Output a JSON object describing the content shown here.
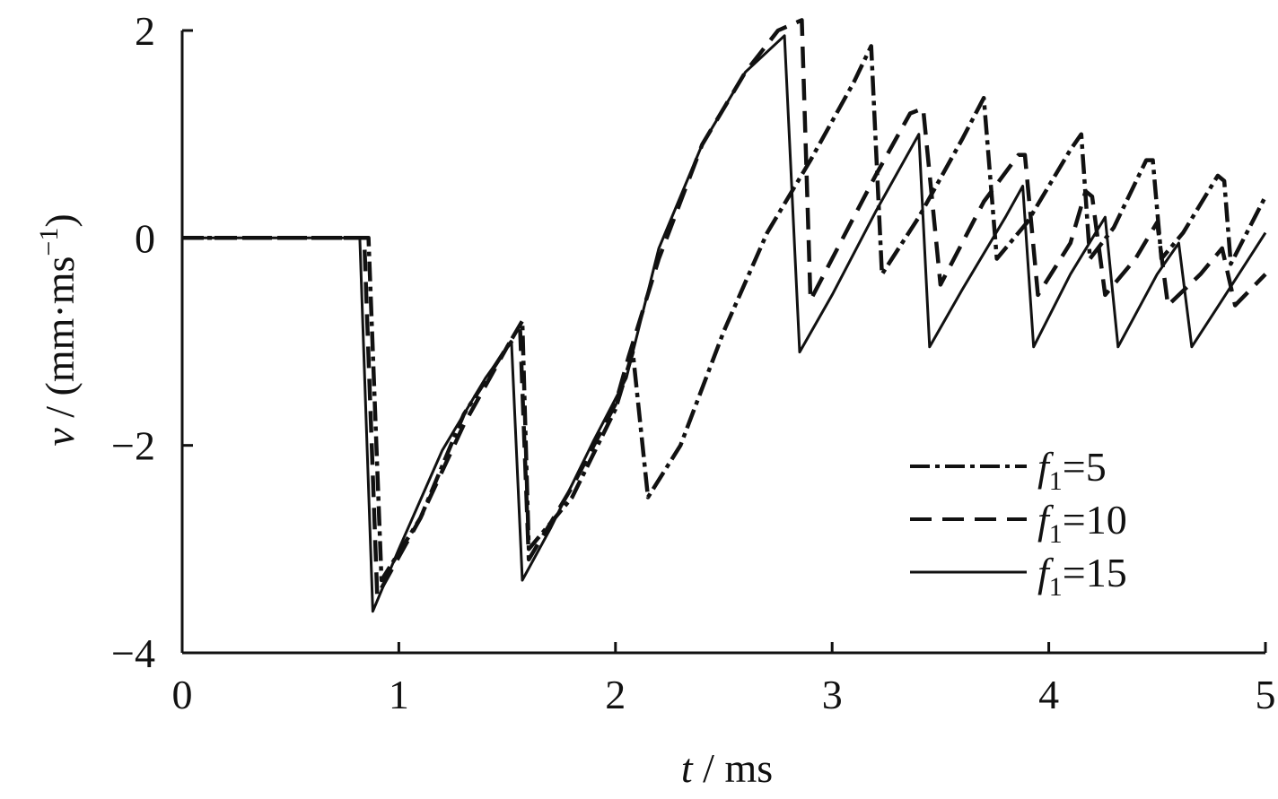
{
  "chart_data": {
    "type": "line",
    "title": "",
    "xlabel": {
      "var": "t",
      "unit": "ms"
    },
    "ylabel": {
      "var": "v",
      "unit_prefix": "(mm·ms",
      "unit_exp": "−1",
      "unit_suffix": ")"
    },
    "xlim": [
      0,
      5
    ],
    "ylim": [
      -4,
      2
    ],
    "xticks": [
      0,
      1,
      2,
      3,
      4,
      5
    ],
    "xtick_labels": [
      "0",
      "1",
      "2",
      "3",
      "4",
      "5"
    ],
    "yticks": [
      -4,
      -2,
      0,
      2
    ],
    "ytick_labels": [
      "−4",
      "−2",
      "0",
      "2"
    ],
    "grid": false,
    "legend_position": "lower-right",
    "series": [
      {
        "name": "f1=5",
        "legend": {
          "symbol": "f",
          "sub": "1",
          "value": "=5"
        },
        "style": "dashdot",
        "points": [
          [
            0,
            0
          ],
          [
            0.86,
            0
          ],
          [
            0.92,
            -3.3
          ],
          [
            1.1,
            -2.7
          ],
          [
            1.3,
            -1.7
          ],
          [
            1.5,
            -1.05
          ],
          [
            1.57,
            -0.8
          ],
          [
            1.6,
            -3.0
          ],
          [
            1.8,
            -2.5
          ],
          [
            2.0,
            -1.65
          ],
          [
            2.08,
            -1.1
          ],
          [
            2.15,
            -2.5
          ],
          [
            2.3,
            -2.0
          ],
          [
            2.5,
            -0.9
          ],
          [
            2.7,
            0.05
          ],
          [
            2.9,
            0.75
          ],
          [
            3.1,
            1.5
          ],
          [
            3.18,
            1.85
          ],
          [
            3.23,
            -0.35
          ],
          [
            3.4,
            0.2
          ],
          [
            3.6,
            0.95
          ],
          [
            3.7,
            1.35
          ],
          [
            3.76,
            -0.2
          ],
          [
            3.9,
            0.15
          ],
          [
            4.1,
            0.85
          ],
          [
            4.15,
            1.0
          ],
          [
            4.19,
            -0.2
          ],
          [
            4.3,
            0.1
          ],
          [
            4.45,
            0.75
          ],
          [
            4.48,
            0.75
          ],
          [
            4.52,
            -0.2
          ],
          [
            4.62,
            0.05
          ],
          [
            4.78,
            0.6
          ],
          [
            4.81,
            0.55
          ],
          [
            4.84,
            -0.25
          ],
          [
            5.0,
            0.4
          ]
        ]
      },
      {
        "name": "f1=10",
        "legend": {
          "symbol": "f",
          "sub": "1",
          "value": "=10"
        },
        "style": "dashed",
        "points": [
          [
            0,
            0
          ],
          [
            0.84,
            0
          ],
          [
            0.9,
            -3.45
          ],
          [
            1.1,
            -2.7
          ],
          [
            1.3,
            -1.8
          ],
          [
            1.5,
            -1.05
          ],
          [
            1.56,
            -0.9
          ],
          [
            1.6,
            -3.1
          ],
          [
            1.8,
            -2.4
          ],
          [
            2.0,
            -1.6
          ],
          [
            2.06,
            -1.15
          ],
          [
            2.2,
            -0.2
          ],
          [
            2.4,
            0.9
          ],
          [
            2.6,
            1.6
          ],
          [
            2.75,
            2.0
          ],
          [
            2.86,
            2.1
          ],
          [
            2.9,
            -0.6
          ],
          [
            3.0,
            -0.2
          ],
          [
            3.2,
            0.6
          ],
          [
            3.36,
            1.2
          ],
          [
            3.42,
            1.25
          ],
          [
            3.5,
            -0.45
          ],
          [
            3.7,
            0.35
          ],
          [
            3.86,
            0.8
          ],
          [
            3.89,
            0.8
          ],
          [
            3.95,
            -0.55
          ],
          [
            4.1,
            -0.05
          ],
          [
            4.17,
            0.45
          ],
          [
            4.2,
            0.4
          ],
          [
            4.26,
            -0.55
          ],
          [
            4.4,
            -0.2
          ],
          [
            4.5,
            0.15
          ],
          [
            4.55,
            -0.65
          ],
          [
            4.7,
            -0.35
          ],
          [
            4.8,
            -0.1
          ],
          [
            4.86,
            -0.65
          ],
          [
            5.0,
            -0.35
          ]
        ]
      },
      {
        "name": "f1=15",
        "legend": {
          "symbol": "f",
          "sub": "1",
          "value": "=15"
        },
        "style": "solid",
        "points": [
          [
            0,
            0
          ],
          [
            0.82,
            0
          ],
          [
            0.88,
            -3.6
          ],
          [
            1.0,
            -3.0
          ],
          [
            1.2,
            -2.05
          ],
          [
            1.4,
            -1.35
          ],
          [
            1.52,
            -1.0
          ],
          [
            1.57,
            -3.3
          ],
          [
            1.7,
            -2.8
          ],
          [
            1.9,
            -1.95
          ],
          [
            2.05,
            -1.35
          ],
          [
            2.2,
            -0.1
          ],
          [
            2.4,
            0.9
          ],
          [
            2.6,
            1.6
          ],
          [
            2.78,
            1.95
          ],
          [
            2.85,
            -1.1
          ],
          [
            3.0,
            -0.55
          ],
          [
            3.2,
            0.25
          ],
          [
            3.4,
            1.0
          ],
          [
            3.45,
            -1.05
          ],
          [
            3.6,
            -0.5
          ],
          [
            3.8,
            0.2
          ],
          [
            3.88,
            0.5
          ],
          [
            3.93,
            -1.05
          ],
          [
            4.1,
            -0.35
          ],
          [
            4.26,
            0.2
          ],
          [
            4.32,
            -1.05
          ],
          [
            4.5,
            -0.35
          ],
          [
            4.6,
            -0.05
          ],
          [
            4.66,
            -1.05
          ],
          [
            4.8,
            -0.6
          ],
          [
            5.0,
            0.05
          ]
        ]
      }
    ]
  }
}
